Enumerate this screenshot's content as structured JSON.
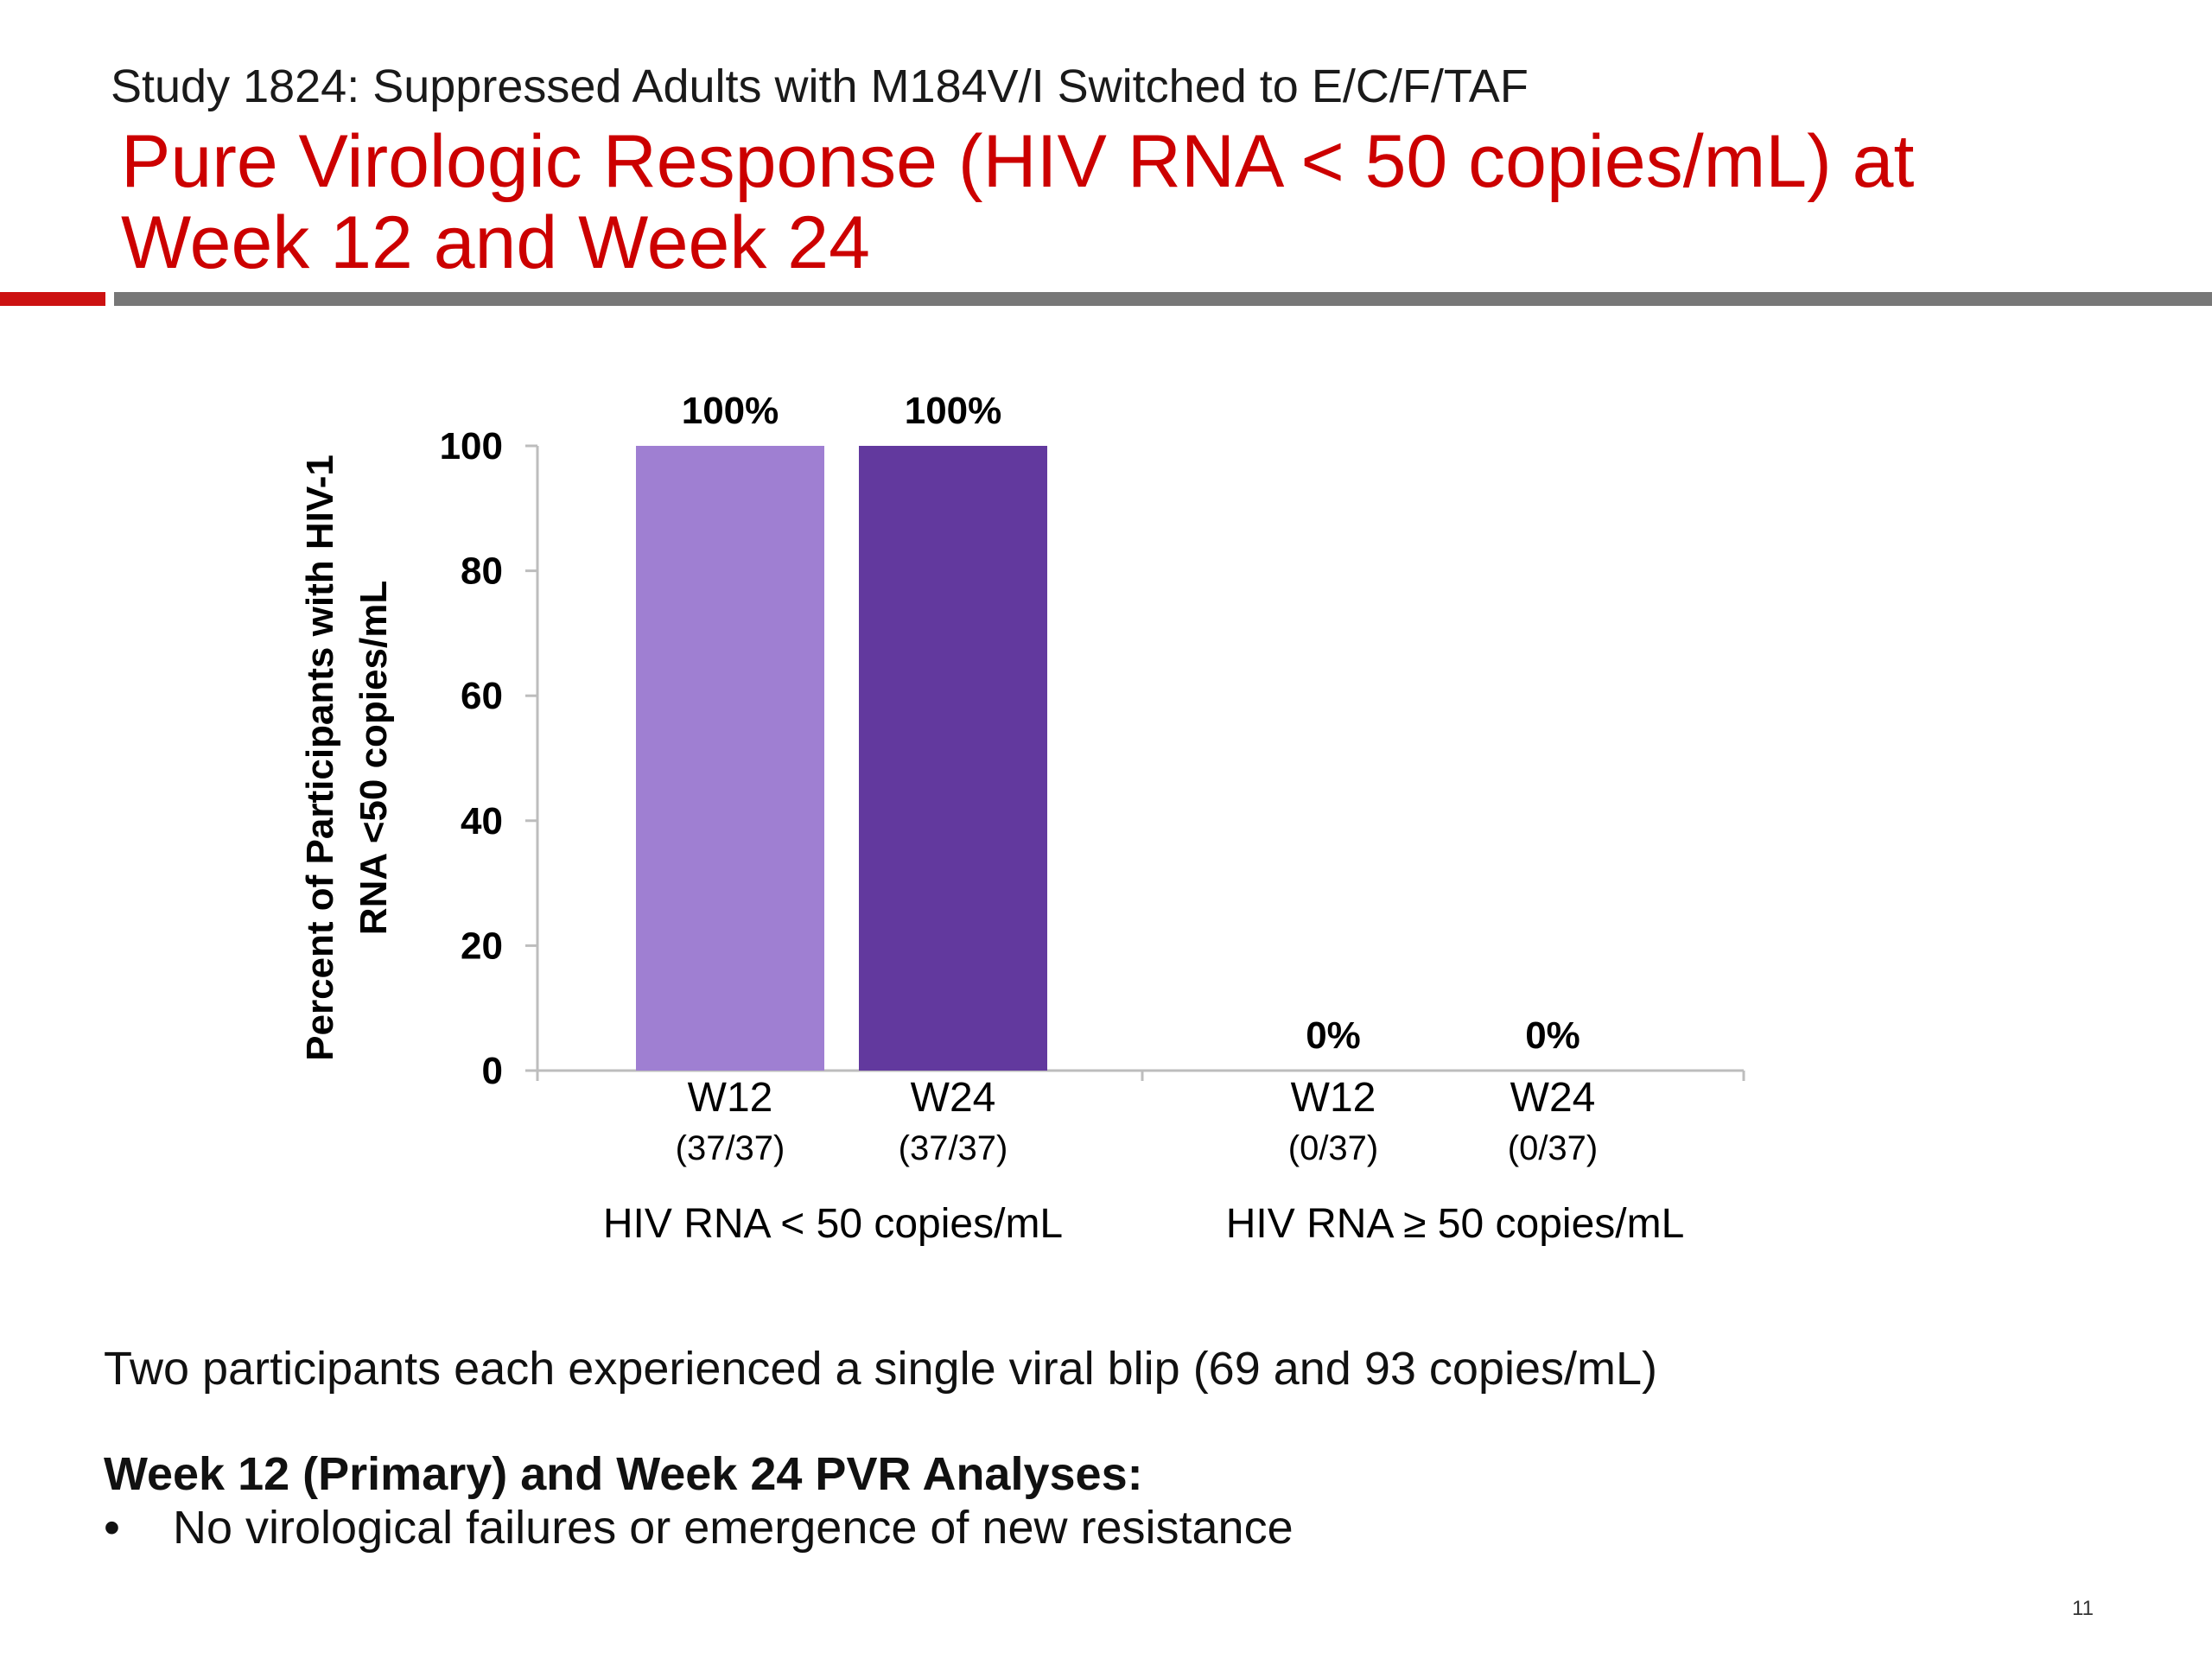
{
  "slide": {
    "subtitle": "Study 1824: Suppressed Adults with M184V/I Switched to E/C/F/TAF",
    "title": "Pure Virologic Response (HIV RNA < 50 copies/mL) at Week 12 and Week 24",
    "blip_note": "Two participants each experienced a single viral blip (69 and 93 copies/mL)",
    "analysis_heading": "Week 12 (Primary) and Week 24 PVR Analyses:",
    "bullet_marker": "•",
    "bullets": [
      "No virological failures or emergence of new resistance"
    ],
    "page_number": "11"
  },
  "chart_data": {
    "type": "bar",
    "title": "",
    "ylabel_lines": [
      "Percent of Participants with HIV-1",
      "RNA <50 copies/mL"
    ],
    "xlabel": "",
    "ylim": [
      0,
      100
    ],
    "yticks": [
      0,
      20,
      40,
      60,
      80,
      100
    ],
    "grid": false,
    "legend": "none",
    "groups": [
      {
        "label": "HIV RNA < 50 copies/mL",
        "bars": [
          {
            "label": "W12",
            "fraction": "(37/37)",
            "value": 100,
            "value_label": "100%",
            "color": "#9f7fd2"
          },
          {
            "label": "W24",
            "fraction": "(37/37)",
            "value": 100,
            "value_label": "100%",
            "color": "#62399e"
          }
        ]
      },
      {
        "label": "HIV RNA ≥ 50 copies/mL",
        "bars": [
          {
            "label": "W12",
            "fraction": "(0/37)",
            "value": 0,
            "value_label": "0%",
            "color": "#9f7fd2"
          },
          {
            "label": "W24",
            "fraction": "(0/37)",
            "value": 0,
            "value_label": "0%",
            "color": "#62399e"
          }
        ]
      }
    ]
  },
  "colors": {
    "title": "#cc0000",
    "accent_rule": "#cc1111",
    "gray_rule": "#777777",
    "bar_week12": "#9f7fd2",
    "bar_week24": "#62399e"
  }
}
